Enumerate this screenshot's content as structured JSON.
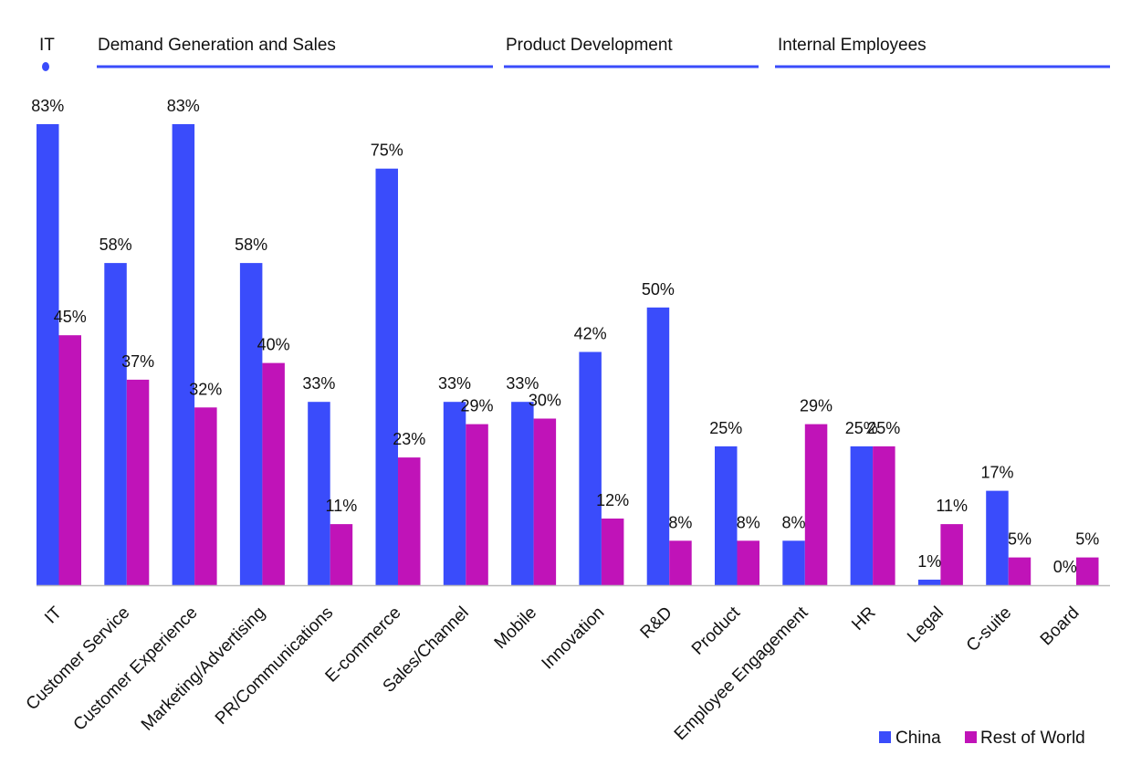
{
  "chart_data": {
    "type": "bar",
    "categories": [
      "IT",
      "Customer Service",
      "Customer Experience",
      "Marketing/Advertising",
      "PR/Communications",
      "E-commerce",
      "Sales/Channel",
      "Mobile",
      "Innovation",
      "R&D",
      "Product",
      "Employee Engagement",
      "HR",
      "Legal",
      "C-suite",
      "Board"
    ],
    "series": [
      {
        "name": "China",
        "color": "#3a4cfb",
        "values": [
          83,
          58,
          83,
          58,
          33,
          75,
          33,
          33,
          42,
          50,
          25,
          8,
          25,
          1,
          17,
          0
        ],
        "labels": [
          "83%",
          "58%",
          "83%",
          "58%",
          "33%",
          "75%",
          "33%",
          "33%",
          "42%",
          "50%",
          "25%",
          "8%",
          "25%",
          "1%",
          "17%",
          "0%"
        ]
      },
      {
        "name": "Rest of World",
        "color": "#c013b8",
        "values": [
          45,
          37,
          32,
          40,
          11,
          23,
          29,
          30,
          12,
          8,
          8,
          29,
          25,
          11,
          5,
          5
        ],
        "labels": [
          "45%",
          "37%",
          "32%",
          "40%",
          "11%",
          "23%",
          "29%",
          "30%",
          "12%",
          "8%",
          "8%",
          "29%",
          "25%",
          "11%",
          "5%",
          "5%"
        ]
      }
    ],
    "groups": [
      {
        "label": "IT",
        "start": 0,
        "end": 0
      },
      {
        "label": "Demand Generation and Sales",
        "start": 1,
        "end": 6
      },
      {
        "label": "Product Development",
        "start": 7,
        "end": 10
      },
      {
        "label": "Internal Employees",
        "start": 11,
        "end": 15
      }
    ],
    "ylim": [
      0,
      83
    ],
    "grid": false,
    "legend_position": "bottom-right",
    "axis_color": "#bbbbbb",
    "group_line_color": "#3a4cfb"
  }
}
